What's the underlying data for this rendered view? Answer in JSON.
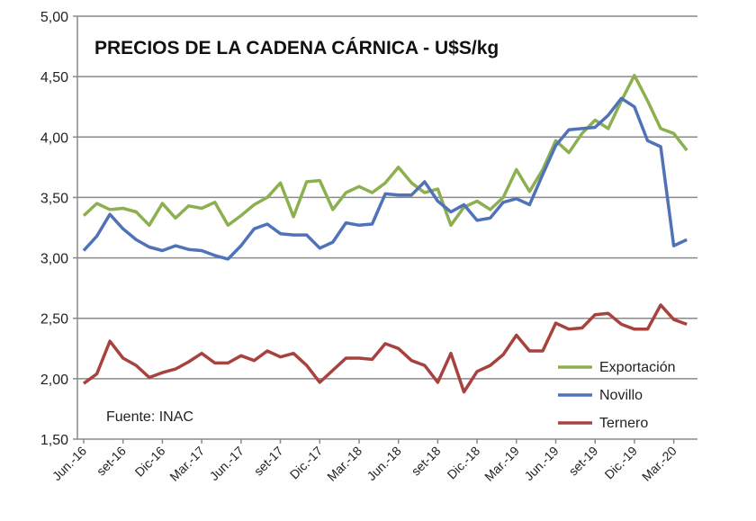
{
  "chart_data": {
    "type": "line",
    "title": "PRECIOS DE LA CADENA CÁRNICA - U$S/kg",
    "annotation": "Fuente: INAC",
    "xlabel": "",
    "ylabel": "",
    "ylim": [
      1.5,
      5.0
    ],
    "yticks": [
      "1,50",
      "2,00",
      "2,50",
      "3,00",
      "3,50",
      "4,00",
      "4,50",
      "5,00"
    ],
    "ytick_values": [
      1.5,
      2.0,
      2.5,
      3.0,
      3.5,
      4.0,
      4.5,
      5.0
    ],
    "xtick_labels": [
      "Jun.-16",
      "set-16",
      "Dic-16",
      "Mar.-17",
      "Jun.-17",
      "set-17",
      "Dic.-17",
      "Mar.-18",
      "Jun.-18",
      "set-18",
      "Dic.-18",
      "Mar.-19",
      "Jun.-19",
      "set-19",
      "Dic.-19",
      "Mar.-20"
    ],
    "xtick_every_months": 3,
    "n_points": 47,
    "grid": true,
    "legend_position": "bottom-right",
    "series": [
      {
        "name": "Exportación",
        "color": "#8cb050",
        "values": [
          3.35,
          3.45,
          3.4,
          3.41,
          3.38,
          3.27,
          3.45,
          3.33,
          3.43,
          3.41,
          3.46,
          3.27,
          3.35,
          3.44,
          3.5,
          3.62,
          3.34,
          3.63,
          3.64,
          3.4,
          3.54,
          3.59,
          3.54,
          3.62,
          3.75,
          3.62,
          3.54,
          3.57,
          3.27,
          3.42,
          3.47,
          3.4,
          3.5,
          3.73,
          3.55,
          3.73,
          3.97,
          3.87,
          4.03,
          4.14,
          4.07,
          4.3,
          4.51,
          4.3,
          4.07,
          4.03,
          3.89
        ]
      },
      {
        "name": "Novillo",
        "color": "#4f72b8",
        "values": [
          3.06,
          3.18,
          3.36,
          3.24,
          3.15,
          3.09,
          3.06,
          3.1,
          3.07,
          3.06,
          3.02,
          2.99,
          3.1,
          3.24,
          3.28,
          3.2,
          3.19,
          3.19,
          3.08,
          3.13,
          3.29,
          3.27,
          3.28,
          3.53,
          3.52,
          3.52,
          3.63,
          3.47,
          3.38,
          3.44,
          3.31,
          3.33,
          3.46,
          3.49,
          3.44,
          3.69,
          3.93,
          4.06,
          4.07,
          4.08,
          4.18,
          4.32,
          4.25,
          3.97,
          3.92,
          3.1,
          3.15
        ]
      },
      {
        "name": "Ternero",
        "color": "#a8423e",
        "values": [
          1.96,
          2.04,
          2.31,
          2.17,
          2.11,
          2.01,
          2.05,
          2.08,
          2.14,
          2.21,
          2.13,
          2.13,
          2.19,
          2.15,
          2.23,
          2.18,
          2.21,
          2.11,
          1.97,
          2.07,
          2.17,
          2.17,
          2.16,
          2.29,
          2.25,
          2.15,
          2.11,
          1.97,
          2.21,
          1.89,
          2.06,
          2.11,
          2.2,
          2.36,
          2.23,
          2.23,
          2.46,
          2.41,
          2.42,
          2.53,
          2.54,
          2.45,
          2.41,
          2.41,
          2.61,
          2.49,
          2.45
        ]
      }
    ]
  }
}
